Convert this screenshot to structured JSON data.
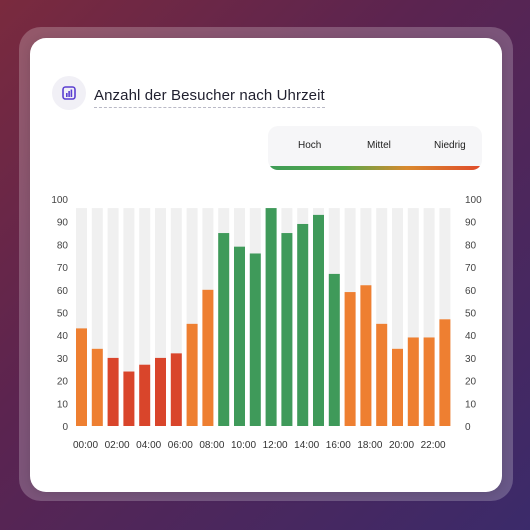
{
  "title": "Anzahl der Besucher nach Uhrzeit",
  "icon": "bar-chart-icon",
  "legend": {
    "items": [
      {
        "label": "Hoch",
        "color": "#3f9a5a"
      },
      {
        "label": "Mittel",
        "color": "#ee7f31"
      },
      {
        "label": "Niedrig",
        "color": "#d9452b"
      }
    ]
  },
  "chart_data": {
    "type": "bar",
    "title": "Anzahl der Besucher nach Uhrzeit",
    "xlabel": "",
    "ylabel": "",
    "ylim": [
      0,
      100
    ],
    "y_ticks": [
      0,
      10,
      20,
      30,
      40,
      50,
      60,
      70,
      80,
      90,
      100
    ],
    "x_tick_labels": [
      "00:00",
      "02:00",
      "04:00",
      "06:00",
      "08:00",
      "10:00",
      "12:00",
      "14:00",
      "16:00",
      "18:00",
      "20:00",
      "22:00"
    ],
    "grid": false,
    "legend_position": "top-right",
    "background_bar_value": 96,
    "categories": [
      "00",
      "01",
      "02",
      "03",
      "04",
      "05",
      "06",
      "07",
      "08",
      "09",
      "10",
      "11",
      "12",
      "13",
      "14",
      "15",
      "16",
      "17",
      "18",
      "19",
      "20",
      "21",
      "22",
      "23"
    ],
    "values": [
      43,
      34,
      30,
      24,
      27,
      30,
      32,
      45,
      60,
      85,
      79,
      76,
      96,
      85,
      89,
      93,
      67,
      59,
      62,
      45,
      34,
      39,
      39,
      47
    ],
    "levels": [
      "Mittel",
      "Mittel",
      "Niedrig",
      "Niedrig",
      "Niedrig",
      "Niedrig",
      "Niedrig",
      "Mittel",
      "Mittel",
      "Hoch",
      "Hoch",
      "Hoch",
      "Hoch",
      "Hoch",
      "Hoch",
      "Hoch",
      "Hoch",
      "Mittel",
      "Mittel",
      "Mittel",
      "Mittel",
      "Mittel",
      "Mittel",
      "Mittel"
    ],
    "colors": {
      "Hoch": "#3f9a5a",
      "Mittel": "#ee7f31",
      "Niedrig": "#d9452b",
      "track": "#f0f0f0"
    }
  }
}
